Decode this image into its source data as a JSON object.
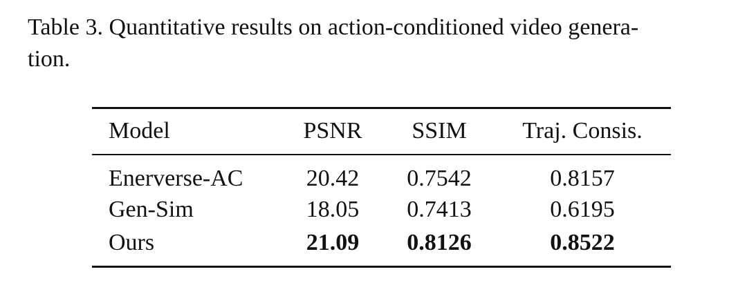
{
  "caption": {
    "lines": [
      "Table 3. Quantitative results on action-conditioned video genera-",
      "tion."
    ]
  },
  "table": {
    "header": [
      "Model",
      "PSNR",
      "SSIM",
      "Traj. Consis."
    ],
    "rows": [
      [
        "Enerverse-AC",
        "20.42",
        "0.7542",
        "0.8157"
      ],
      [
        "Gen-Sim",
        "18.05",
        "0.7413",
        "0.6195"
      ],
      [
        "Ours",
        "21.09",
        "0.8126",
        "0.8522"
      ]
    ]
  }
}
